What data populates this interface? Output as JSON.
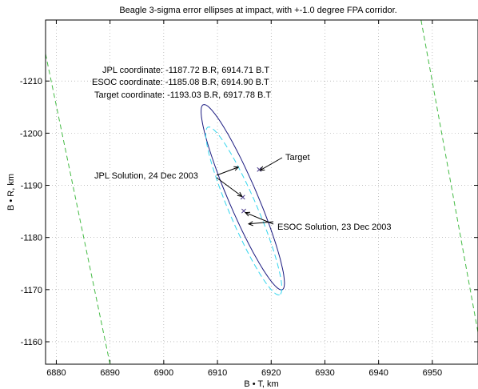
{
  "chart_data": {
    "type": "scatter",
    "title": "Beagle 3-sigma error ellipses at impact, with +-1.0 degree FPA corridor.",
    "xlabel": "B • T, km",
    "ylabel": "B • R, km",
    "xlim": [
      6878,
      6958.5
    ],
    "ylim": [
      -1155.7,
      -1221.7
    ],
    "x_ticks": [
      6880,
      6890,
      6900,
      6910,
      6920,
      6930,
      6940,
      6950
    ],
    "y_ticks": [
      -1210,
      -1200,
      -1190,
      -1180,
      -1170,
      -1160
    ],
    "grid": true,
    "coordinates_text": [
      "JPL coordinate: -1187.72 B.R, 6914.71 B.T",
      "ESOC coordinate: -1185.08 B.R, 6914.90 B.T",
      "Target coordinate: -1193.03 B.R, 6917.78 B.T"
    ],
    "points": [
      {
        "name": "JPL Solution, 24 Dec 2003",
        "x": 6914.71,
        "y": -1187.72
      },
      {
        "name": "ESOC Solution, 23 Dec 2003",
        "x": 6914.9,
        "y": -1185.08
      },
      {
        "name": "Target",
        "x": 6917.78,
        "y": -1193.03
      }
    ],
    "annotations": {
      "jpl": "JPL Solution, 24 Dec 2003",
      "esoc": "ESOC Solution, 23 Dec 2003",
      "target": "Target"
    },
    "ellipses": [
      {
        "name": "JPL 3-sigma ellipse",
        "color": "#1a1a80",
        "style": "solid",
        "center": [
          6914.71,
          -1187.72
        ],
        "semi_major": 19.2,
        "semi_minor": 2.7,
        "orientation_deg": 67.5
      },
      {
        "name": "ESOC 3-sigma ellipse",
        "color": "#33d6ee",
        "style": "dashed",
        "center": [
          6914.9,
          -1185.08
        ],
        "semi_major": 17.4,
        "semi_minor": 2.6,
        "orientation_deg": 67.5
      }
    ],
    "corridor": {
      "name": "+-1.0 degree FPA corridor",
      "color": "#44bb44",
      "style": "dashed",
      "lines": [
        [
          [
            6878.0,
            -1215.2
          ],
          [
            6890.0,
            -1155.7
          ]
        ],
        [
          [
            6947.9,
            -1221.7
          ],
          [
            6958.5,
            -1161.8
          ]
        ]
      ]
    }
  }
}
